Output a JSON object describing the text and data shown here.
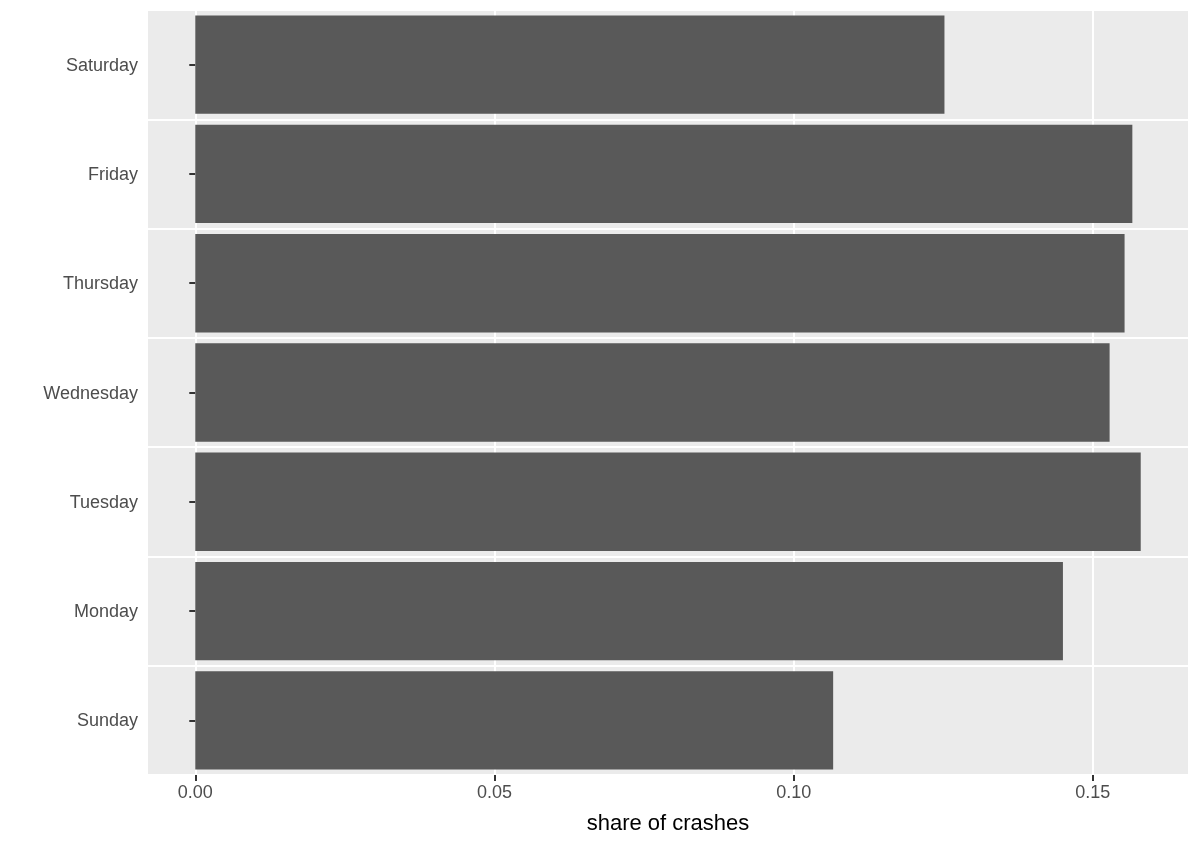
{
  "chart_data": {
    "type": "bar",
    "orientation": "horizontal",
    "xlabel": "share of crashes",
    "categories": [
      "Saturday",
      "Friday",
      "Thursday",
      "Wednesday",
      "Tuesday",
      "Monday",
      "Sunday"
    ],
    "values": [
      0.1252,
      0.1566,
      0.1553,
      0.1528,
      0.158,
      0.145,
      0.1066
    ],
    "color": "#595959",
    "xlim": [
      -0.0079,
      0.1659
    ],
    "xticks": [
      {
        "value": 0,
        "label": "0.00"
      },
      {
        "value": 0.05,
        "label": "0.05"
      },
      {
        "value": 0.1,
        "label": "0.10"
      },
      {
        "value": 0.15,
        "label": "0.15"
      }
    ],
    "grid": true
  }
}
